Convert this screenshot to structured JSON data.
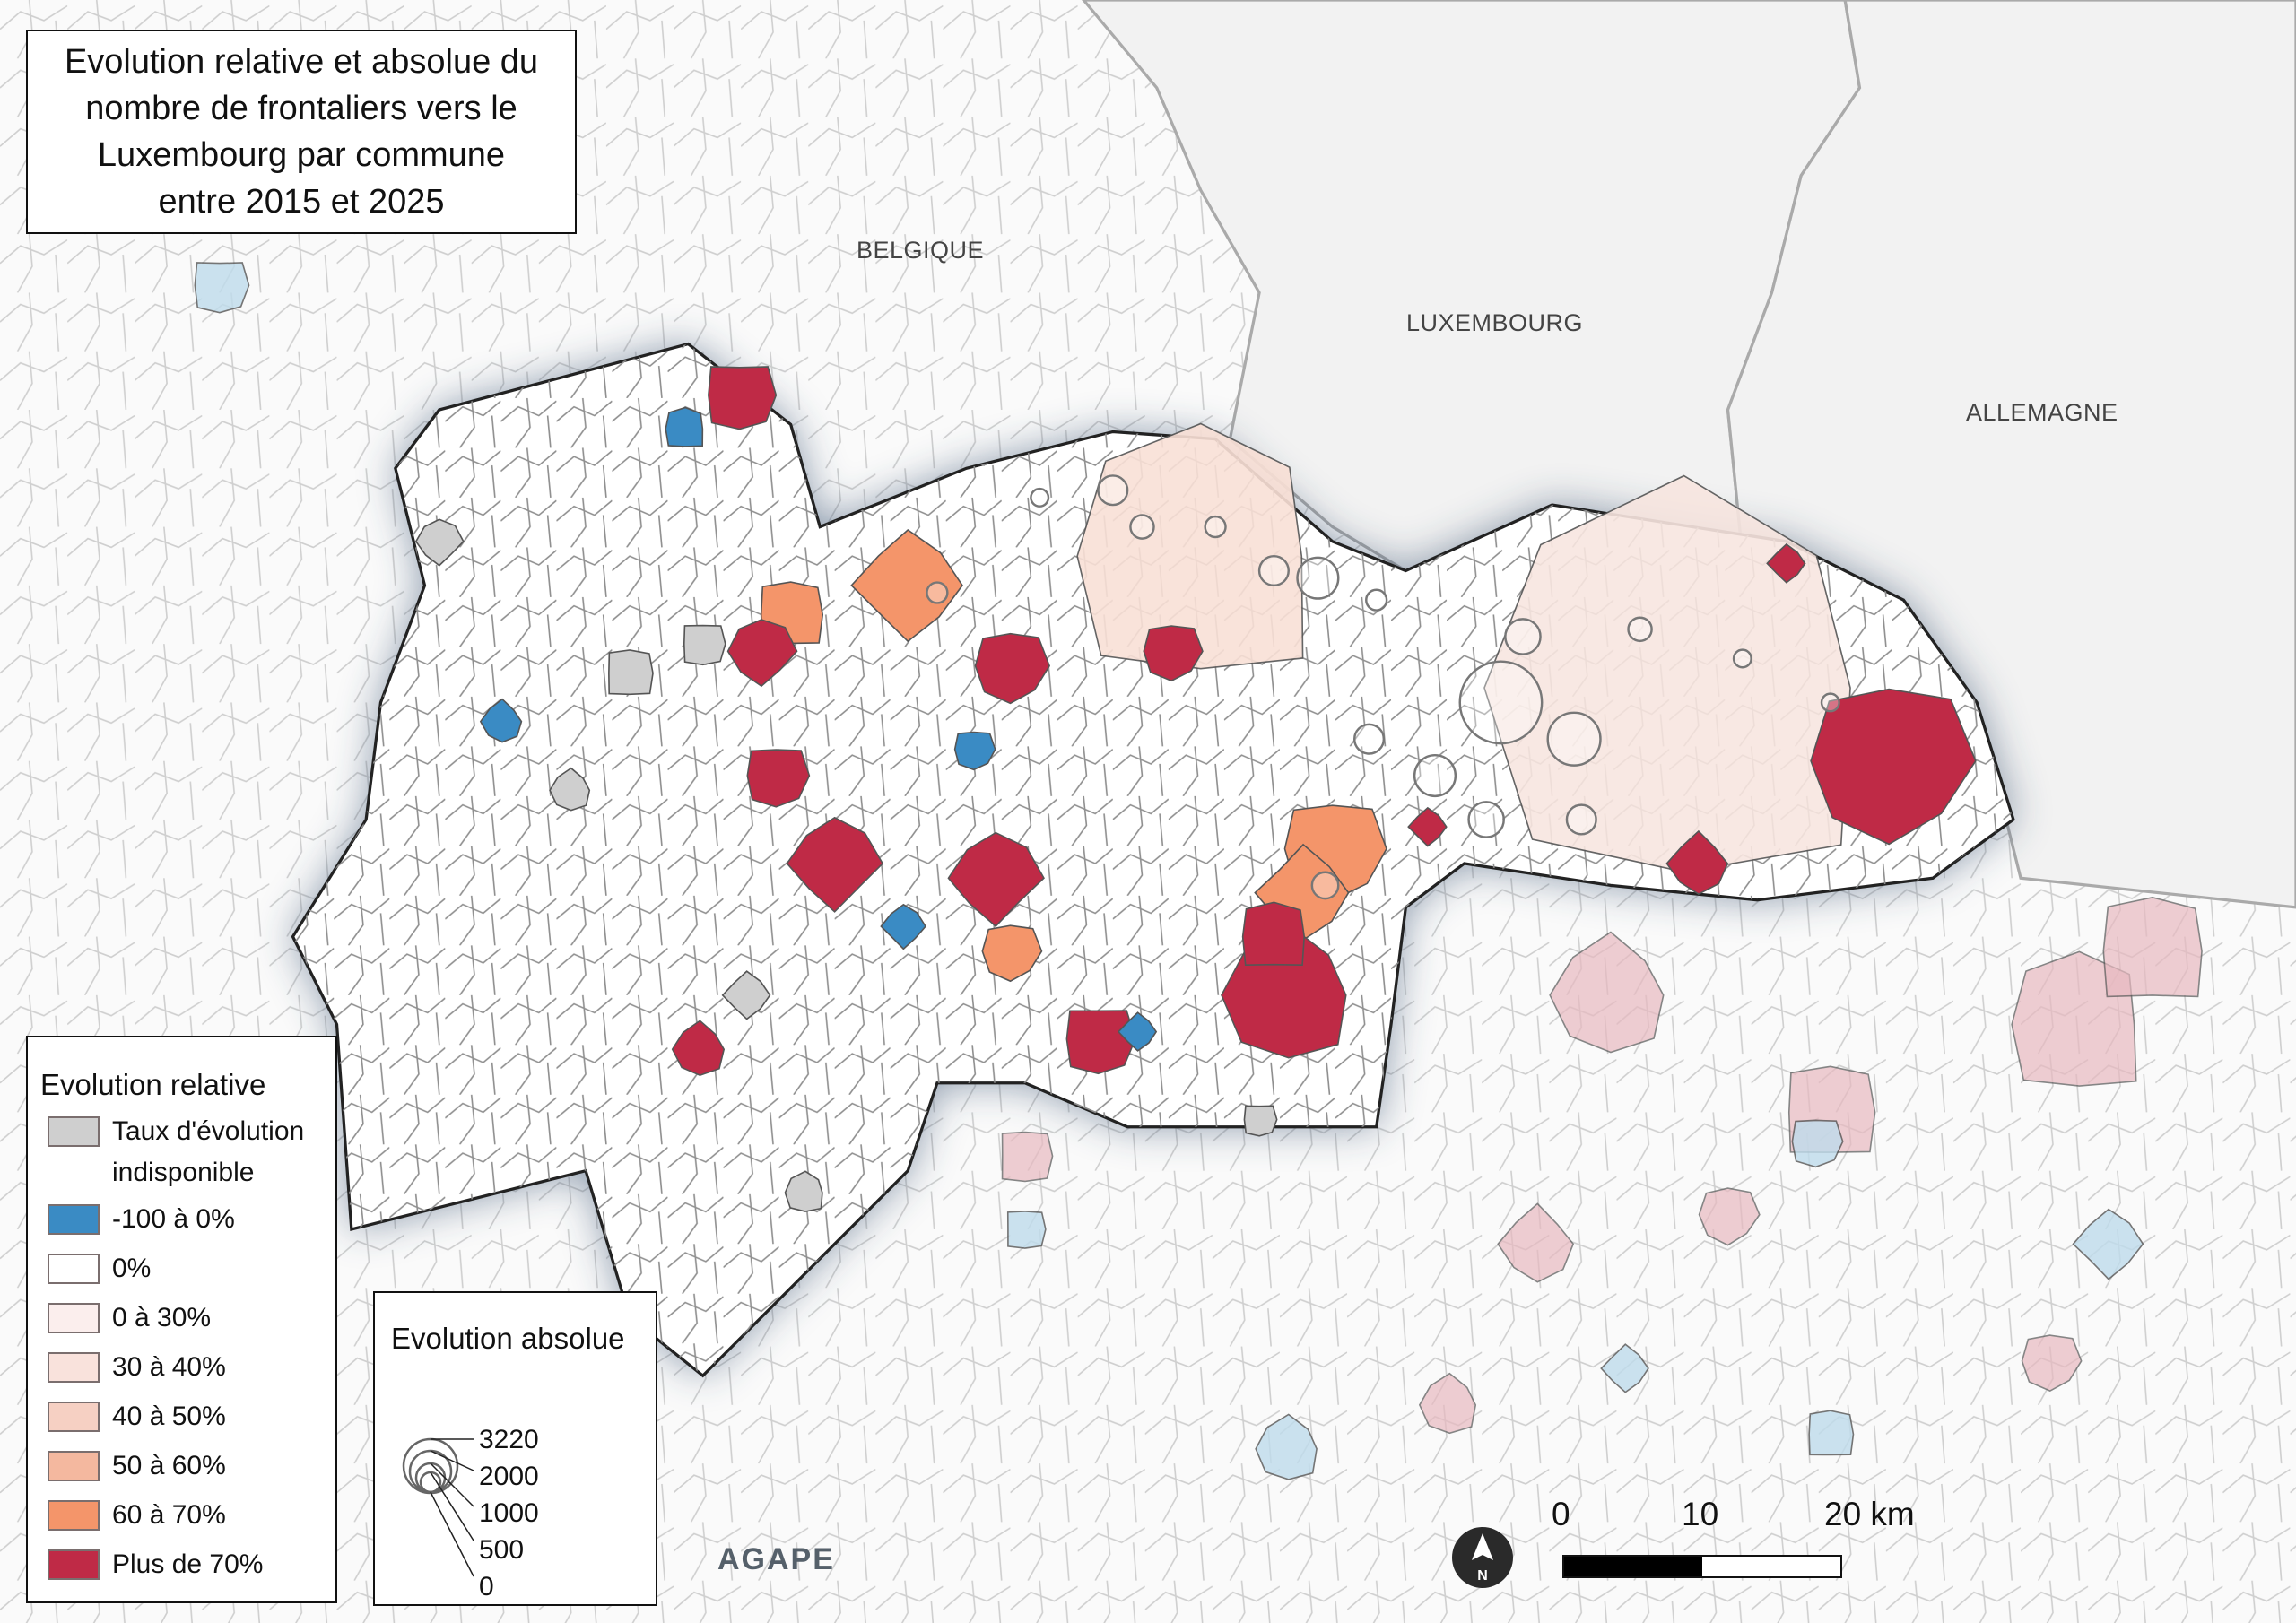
{
  "title": "Evolution relative et absolue du nombre de frontaliers vers le Luxembourg par commune entre 2015 et 2025",
  "title_lines": [
    "Evolution relative et absolue du",
    "nombre de frontaliers vers le",
    "Luxembourg par commune",
    "entre 2015 et 2025"
  ],
  "country_labels": {
    "belgium": "BELGIQUE",
    "luxembourg": "LUXEMBOURG",
    "germany": "ALLEMAGNE"
  },
  "legend_relative": {
    "title": "Evolution relative",
    "items": [
      {
        "label_1": "Taux d'évolution",
        "label_2": "indisponible",
        "color": "#cfcfcf"
      },
      {
        "label": "-100 à 0%",
        "color": "#3a8bc4"
      },
      {
        "label": "0%",
        "color": "#ffffff"
      },
      {
        "label": "0 à 30%",
        "color": "#fbeeed"
      },
      {
        "label": "30 à 40%",
        "color": "#f9e2dc"
      },
      {
        "label": "40 à 50%",
        "color": "#f6d0c3"
      },
      {
        "label": "50 à 60%",
        "color": "#f4b89f"
      },
      {
        "label": "60 à 70%",
        "color": "#f4956a"
      },
      {
        "label": "Plus de 70%",
        "color": "#bf2a46"
      }
    ]
  },
  "legend_absolute": {
    "title": "Evolution absolue",
    "values": [
      "3220",
      "2000",
      "1000",
      "500",
      "0"
    ]
  },
  "scale_bar": {
    "labels": [
      "0",
      "10",
      "20 km"
    ]
  },
  "north_arrow": {
    "letter": "N"
  },
  "logo": "AGAPE",
  "colors": {
    "highlight_red": "#bf2a46",
    "orange": "#f4956a",
    "blue": "#3a8bc4",
    "gray": "#cfcfcf",
    "halo": "#2e4a6b"
  }
}
